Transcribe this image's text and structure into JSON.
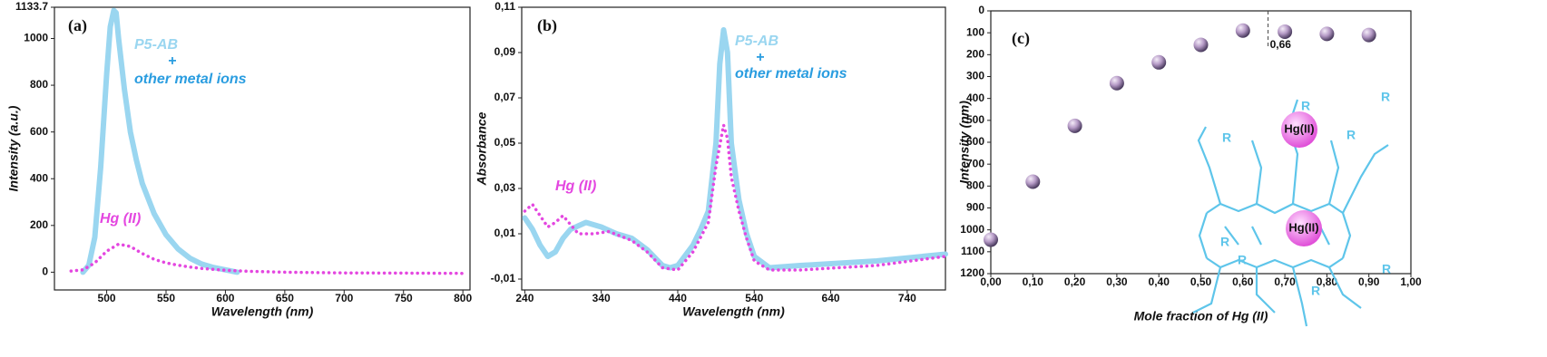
{
  "chart_data": [
    {
      "type": "line",
      "panel_label": "(a)",
      "x_label": "Wavelength (nm)",
      "y_label": "Intensity (a.u.)",
      "xlim": [
        456,
        806
      ],
      "ylim": [
        -76,
        1133.7
      ],
      "xticks": [
        500,
        550,
        600,
        650,
        700,
        750,
        800
      ],
      "yticks": [
        0,
        200,
        400,
        600,
        800,
        1000,
        1133.7
      ],
      "series": [
        {
          "color": "#9ad6f0",
          "style": "solid",
          "x": [
            480,
            485,
            490,
            495,
            500,
            503,
            506,
            508,
            510,
            515,
            520,
            525,
            530,
            540,
            550,
            560,
            570,
            580,
            590,
            600,
            610
          ],
          "values": [
            0,
            30,
            150,
            450,
            850,
            1050,
            1120,
            1110,
            1000,
            780,
            600,
            480,
            380,
            250,
            160,
            100,
            60,
            35,
            20,
            10,
            0
          ]
        },
        {
          "color": "#e447e0",
          "style": "dotted",
          "x": [
            470,
            480,
            490,
            500,
            510,
            520,
            530,
            540,
            550,
            560,
            570,
            580,
            590,
            600,
            620,
            650,
            700,
            750,
            800
          ],
          "values": [
            5,
            10,
            40,
            90,
            120,
            110,
            80,
            55,
            40,
            30,
            22,
            16,
            12,
            8,
            4,
            0,
            -3,
            -4,
            -5
          ]
        }
      ],
      "annotations": [
        {
          "text": "P5-AB",
          "color": "#9ad6f0"
        },
        {
          "text": "+",
          "color": "#2a9de0"
        },
        {
          "text": "other metal ions",
          "color": "#2a9de0"
        },
        {
          "text": "Hg (II)",
          "color": "#e447e0"
        }
      ]
    },
    {
      "type": "line",
      "panel_label": "(b)",
      "x_label": "Wavelength (nm)",
      "y_label": "Absorbance",
      "xlim": [
        236,
        790
      ],
      "ylim": [
        -0.0148,
        0.11
      ],
      "xticks": [
        240,
        340,
        440,
        540,
        640,
        740
      ],
      "yticks": [
        {
          "value": -0.01,
          "label": "-0,01"
        },
        {
          "value": 0.01,
          "label": "0,01"
        },
        {
          "value": 0.03,
          "label": "0,03"
        },
        {
          "value": 0.05,
          "label": "0,05"
        },
        {
          "value": 0.07,
          "label": "0,07"
        },
        {
          "value": 0.09,
          "label": "0,09"
        },
        {
          "value": 0.11,
          "label": "0,11"
        }
      ],
      "series": [
        {
          "color": "#9ad6f0",
          "style": "solid",
          "x": [
            240,
            250,
            260,
            270,
            280,
            290,
            300,
            320,
            340,
            360,
            380,
            400,
            420,
            430,
            440,
            460,
            470,
            480,
            490,
            495,
            500,
            505,
            510,
            520,
            530,
            540,
            560,
            600,
            700,
            790
          ],
          "values": [
            0.017,
            0.012,
            0.005,
            0.0,
            0.002,
            0.008,
            0.012,
            0.015,
            0.013,
            0.01,
            0.008,
            0.003,
            -0.004,
            -0.005,
            -0.004,
            0.005,
            0.012,
            0.02,
            0.05,
            0.085,
            0.1,
            0.09,
            0.05,
            0.025,
            0.01,
            0.0,
            -0.005,
            -0.004,
            -0.002,
            0.001
          ]
        },
        {
          "color": "#e447e0",
          "style": "dotted",
          "x": [
            240,
            250,
            260,
            270,
            280,
            290,
            300,
            310,
            330,
            350,
            380,
            400,
            420,
            440,
            460,
            480,
            490,
            500,
            505,
            510,
            520,
            530,
            540,
            560,
            600,
            700,
            790
          ],
          "values": [
            0.02,
            0.023,
            0.018,
            0.013,
            0.015,
            0.018,
            0.014,
            0.01,
            0.01,
            0.011,
            0.007,
            0.002,
            -0.005,
            -0.006,
            0.002,
            0.015,
            0.04,
            0.058,
            0.052,
            0.035,
            0.02,
            0.008,
            -0.002,
            -0.006,
            -0.006,
            -0.004,
            0.0
          ]
        }
      ],
      "annotations": [
        {
          "text": "P5-AB",
          "color": "#9ad6f0"
        },
        {
          "text": "+",
          "color": "#2a9de0"
        },
        {
          "text": "other metal ions",
          "color": "#2a9de0"
        },
        {
          "text": "Hg (II)",
          "color": "#e447e0"
        }
      ]
    },
    {
      "type": "scatter",
      "panel_label": "(c)",
      "x_label": "Mole fraction of Hg (II)",
      "y_label": "Intensity (nm)",
      "xlim": [
        0,
        1
      ],
      "ylim": [
        1200,
        0
      ],
      "xticks": [
        {
          "value": 0,
          "label": "0,00"
        },
        {
          "value": 0.1,
          "label": "0,10"
        },
        {
          "value": 0.2,
          "label": "0,20"
        },
        {
          "value": 0.3,
          "label": "0,30"
        },
        {
          "value": 0.4,
          "label": "0,40"
        },
        {
          "value": 0.5,
          "label": "0,50"
        },
        {
          "value": 0.6,
          "label": "0,60"
        },
        {
          "value": 0.7,
          "label": "0,70"
        },
        {
          "value": 0.8,
          "label": "0,80"
        },
        {
          "value": 0.9,
          "label": "0,90"
        },
        {
          "value": 1,
          "label": "1,00"
        }
      ],
      "yticks": [
        0,
        100,
        200,
        300,
        400,
        500,
        600,
        700,
        800,
        900,
        1000,
        1100,
        1200
      ],
      "series": [
        {
          "color": "#b890c8",
          "x": [
            0,
            0.1,
            0.2,
            0.3,
            0.4,
            0.5,
            0.6,
            0.7,
            0.8,
            0.9
          ],
          "values": [
            1045,
            780,
            525,
            330,
            235,
            155,
            90,
            95,
            105,
            110
          ]
        }
      ],
      "markers": [
        {
          "value": 0.66,
          "label": "0,66"
        }
      ],
      "diagram_labels": [
        "Hg(II)",
        "Hg(II)",
        "R",
        "R",
        "R",
        "R",
        "R",
        "R",
        "R",
        "R"
      ]
    }
  ]
}
